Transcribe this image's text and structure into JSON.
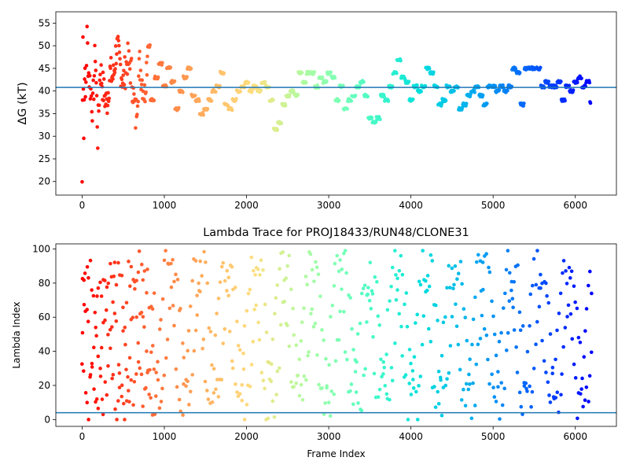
{
  "chart_data": [
    {
      "type": "scatter",
      "title": "",
      "xlabel": "",
      "ylabel": "ΔG (kT)",
      "xlim": [
        -320,
        6500
      ],
      "ylim": [
        17,
        57.5
      ],
      "xticks": [
        0,
        1000,
        2000,
        3000,
        4000,
        5000,
        6000
      ],
      "yticks": [
        20,
        25,
        30,
        35,
        40,
        45,
        50,
        55
      ],
      "grid": false,
      "colormap": "rainbow (colored by frame index, red = 0 → purple = 6200)",
      "hline": 40.8,
      "hline_color": "#1f77b4",
      "series": [
        {
          "x": [
            0,
            10,
            20,
            30,
            40,
            60,
            80,
            100,
            130,
            160,
            190,
            220,
            260,
            300,
            340,
            380,
            420,
            460,
            500,
            550,
            600,
            650,
            700,
            760,
            800,
            850,
            900,
            950,
            1000,
            1050,
            1100,
            1150,
            1200,
            1250,
            1300,
            1350,
            1400,
            1450,
            1500,
            1550,
            1600,
            1650,
            1700,
            1750,
            1800,
            1850,
            1900,
            1950,
            2000,
            2050,
            2100,
            2150,
            2200,
            2250,
            2300,
            2350,
            2400,
            2450,
            2500,
            2550,
            2600,
            2650,
            2700,
            2750,
            2800,
            2850,
            2900,
            2950,
            3000,
            3050,
            3100,
            3150,
            3200,
            3250,
            3300,
            3350,
            3400,
            3450,
            3500,
            3550,
            3600,
            3650,
            3700,
            3750,
            3800,
            3850,
            3900,
            3950,
            4000,
            4050,
            4100,
            4150,
            4200,
            4250,
            4300,
            4350,
            4400,
            4450,
            4500,
            4550,
            4600,
            4650,
            4700,
            4750,
            4800,
            4850,
            4900,
            4950,
            5000,
            5050,
            5100,
            5150,
            5200,
            5250,
            5300,
            5350,
            5400,
            5450,
            5500,
            5550,
            5600,
            5650,
            5700,
            5750,
            5800,
            5850,
            5900,
            5950,
            6000,
            6050,
            6100,
            6150,
            6190
          ],
          "y": [
            20,
            55,
            30,
            46,
            38,
            52,
            44,
            41,
            36,
            49,
            30,
            45,
            40,
            37,
            44,
            43,
            50,
            46,
            42,
            47,
            44,
            34,
            46,
            39,
            50,
            38,
            43,
            46,
            41,
            45,
            42,
            36,
            40,
            43,
            45,
            39,
            38,
            35,
            36,
            38,
            40,
            41,
            44,
            37,
            36,
            38,
            40,
            41,
            42,
            40,
            41,
            40,
            42,
            41,
            38,
            31.5,
            33,
            37,
            39,
            40,
            39,
            44,
            42,
            44,
            44,
            41,
            43,
            42,
            44,
            43,
            38,
            41,
            36,
            38,
            39,
            41,
            42,
            39,
            34,
            33,
            34,
            39,
            38,
            41,
            44,
            47,
            43,
            42,
            38,
            41,
            40,
            41,
            45,
            44,
            41,
            37,
            38,
            41,
            40,
            41,
            36,
            37,
            39,
            40,
            41,
            39,
            37,
            41,
            41,
            40,
            41,
            40,
            41,
            45,
            44,
            37,
            45,
            45,
            45,
            45,
            41,
            42,
            41,
            41,
            42,
            38,
            41,
            40,
            42,
            43,
            41,
            42,
            37.5
          ]
        }
      ]
    },
    {
      "type": "scatter",
      "title": "Lambda Trace for PROJ18433/RUN48/CLONE31",
      "xlabel": "Frame Index",
      "ylabel": "Lambda Index",
      "xlim": [
        -320,
        6500
      ],
      "ylim": [
        -4,
        103
      ],
      "xticks": [
        0,
        1000,
        2000,
        3000,
        4000,
        5000,
        6000
      ],
      "yticks": [
        0,
        20,
        40,
        60,
        80,
        100
      ],
      "grid": false,
      "colormap": "rainbow (colored by frame index, red = 0 → purple = 6200)",
      "hline": 4,
      "hline_color": "#1f77b4",
      "series": [
        {
          "x_range": [
            0,
            6200
          ],
          "x_step": 20,
          "y_range": [
            0,
            99
          ],
          "note": "points oscillate between lambda 0 and 99 in vertical bands"
        }
      ]
    }
  ]
}
